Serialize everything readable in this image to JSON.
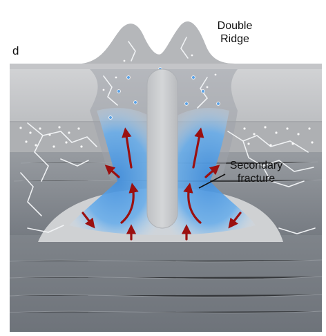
{
  "panel_letter": "d",
  "labels": {
    "double_ridge": [
      "Double",
      "Ridge"
    ],
    "secondary_fracture": [
      "Secondary",
      "fracture"
    ]
  },
  "colors": {
    "sky": "#ffffff",
    "upper_ice": "#c9c9c9",
    "porous_layer": "#aeb0b3",
    "lower_ice": "#8f9398",
    "deep_ice": "#7c8187",
    "sill": "#cfd1d3",
    "water": "#5aa2e6",
    "water_light": "#a9cdf0",
    "fracture_white": "#f4f6f8",
    "arrow_red": "#9b1010",
    "text": "#111111"
  },
  "icons": {
    "flow_arrow": "red-flow-arrow-icon",
    "bubble": "air-bubble-icon"
  }
}
